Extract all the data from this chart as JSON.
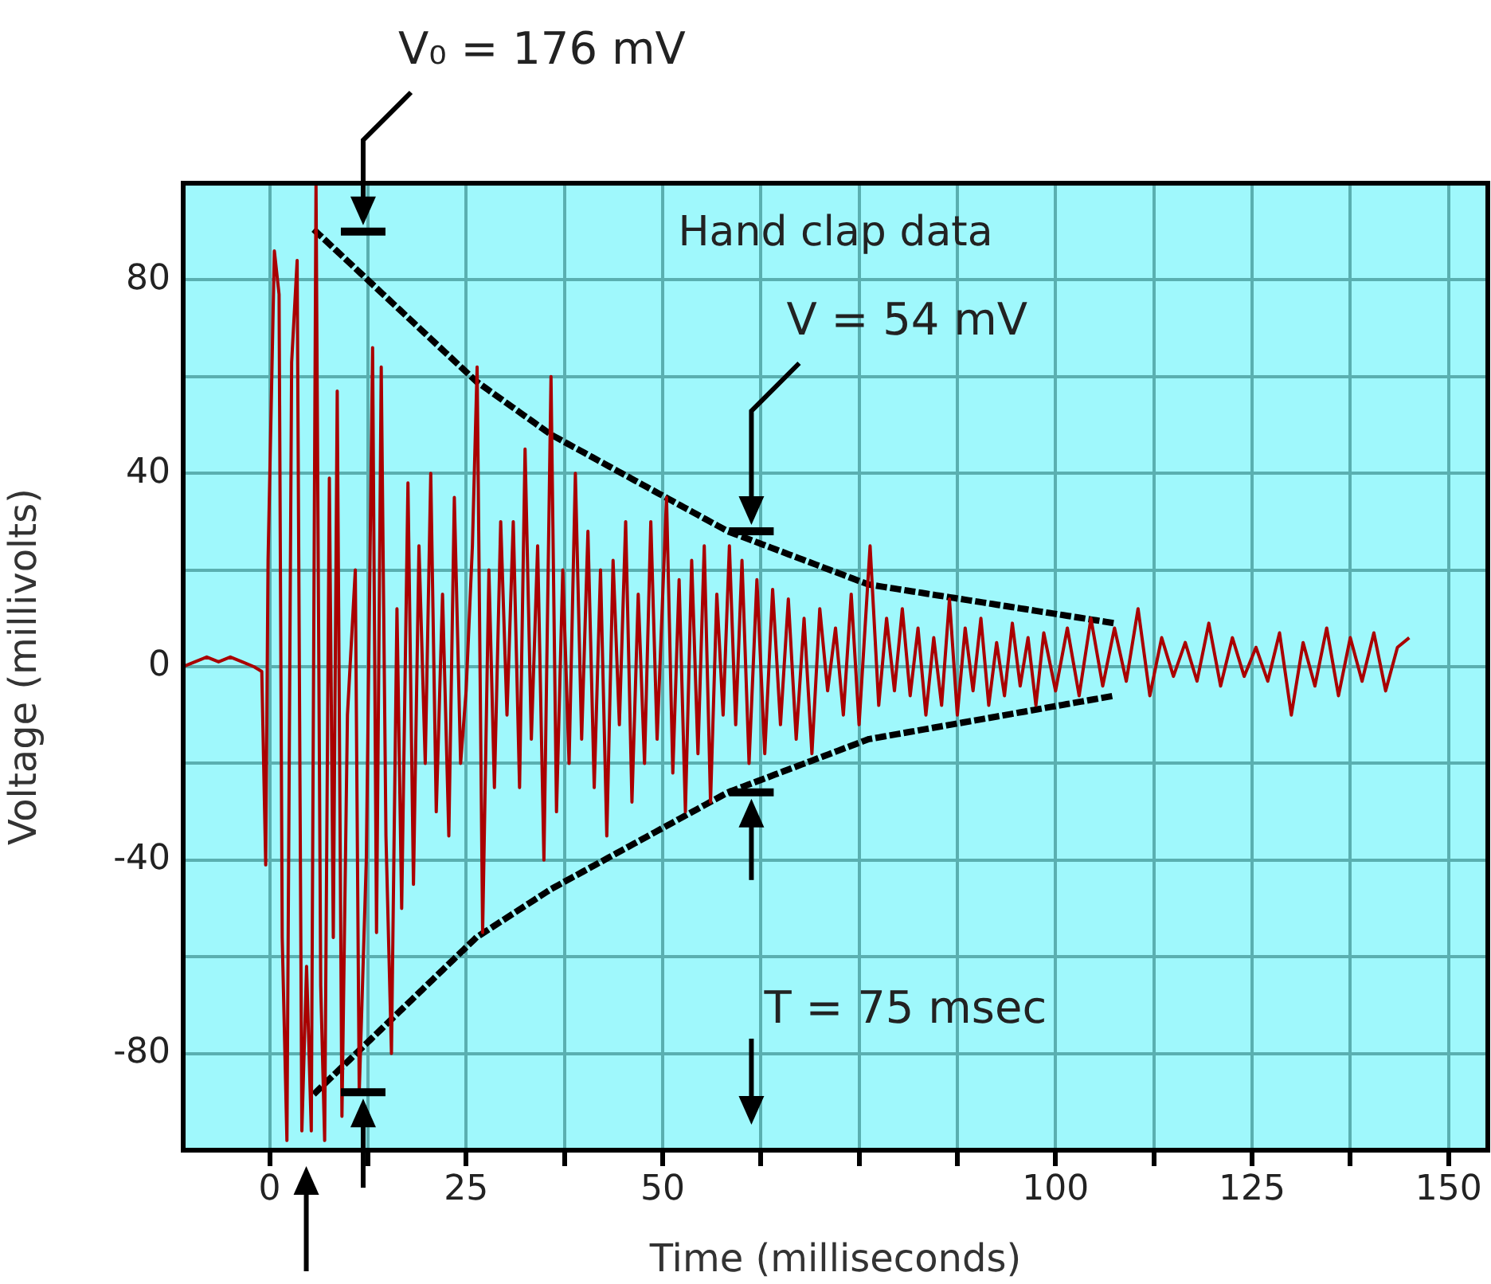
{
  "chart_data": {
    "type": "line",
    "title": "Hand clap data",
    "xlabel": "Time (milliseconds)",
    "ylabel": "Voltage (millivolts)",
    "xlim": [
      -11,
      155
    ],
    "ylim": [
      -100,
      100
    ],
    "xticks": [
      0,
      {
        "value": 12.5,
        "label": null
      },
      25,
      {
        "value": 37.5,
        "label": null
      },
      50,
      {
        "value": 62.5,
        "label": null
      },
      {
        "value": 75,
        "label": null
      },
      {
        "value": 87.5,
        "label": null
      },
      100,
      {
        "value": 112.5,
        "label": null
      },
      125,
      {
        "value": 137.5,
        "label": null
      },
      150
    ],
    "yticks": [
      -80,
      {
        "value": -60,
        "label": null
      },
      -40,
      {
        "value": -20,
        "label": null
      },
      0,
      {
        "value": 20,
        "label": null
      },
      40,
      {
        "value": 60,
        "label": null
      },
      80
    ],
    "grid": true,
    "legend": false,
    "marker": "none",
    "series": [
      {
        "color": "#aa0000",
        "line_style": "solid",
        "x": [
          -11,
          -9.5,
          -8,
          -6.5,
          -5,
          -3.5,
          -2,
          -1,
          -0.5,
          -0.2,
          0.6,
          1.2,
          1.6,
          2.2,
          2.8,
          3.5,
          4.1,
          4.7,
          5.3,
          5.9,
          6.5,
          7.0,
          7.6,
          8.1,
          8.6,
          9.2,
          9.9,
          10.9,
          11.4,
          12.3,
          13.1,
          13.6,
          14.2,
          14.8,
          15.5,
          16.2,
          16.8,
          17.6,
          18.3,
          19.0,
          19.8,
          20.5,
          21.2,
          22.0,
          22.8,
          23.5,
          24.3,
          25.0,
          25.8,
          26.4,
          27.1,
          27.9,
          28.6,
          29.4,
          30.2,
          31.0,
          31.8,
          32.5,
          33.3,
          34.1,
          34.9,
          35.8,
          36.5,
          37.3,
          38.1,
          38.9,
          39.7,
          40.5,
          41.3,
          42.1,
          42.9,
          43.7,
          44.5,
          45.3,
          46.1,
          46.9,
          47.7,
          48.5,
          49.3,
          50.5,
          51.3,
          52.1,
          52.9,
          53.7,
          54.5,
          55.3,
          56.1,
          56.9,
          57.7,
          58.5,
          59.3,
          60.1,
          61,
          62,
          63,
          64,
          65,
          66,
          67,
          68,
          69,
          70,
          71,
          72,
          73,
          74,
          75,
          76.4,
          77.5,
          78.5,
          79.5,
          80.5,
          81.5,
          82.5,
          83.5,
          84.5,
          85.5,
          86.5,
          87.5,
          88.5,
          89.5,
          90.5,
          91.5,
          92.5,
          93.5,
          94.5,
          95.5,
          96.5,
          97.5,
          98.5,
          100,
          101.5,
          103,
          104.5,
          106,
          107.5,
          109,
          110.5,
          112,
          113.5,
          115,
          116.5,
          118,
          119.5,
          121,
          122.5,
          124,
          125.5,
          127,
          128.5,
          130,
          131.5,
          133,
          134.5,
          136,
          137.5,
          139,
          140.5,
          142,
          143.5,
          145
        ],
        "values": [
          0,
          1,
          2,
          1,
          2,
          1,
          0,
          -1,
          -41,
          22,
          86,
          77,
          -56,
          -98,
          63,
          84,
          -96,
          -62,
          -96,
          100,
          -66,
          -98,
          39,
          -56,
          57,
          -93,
          -10,
          20,
          -88,
          -40,
          66,
          -55,
          62,
          -35,
          -80,
          12,
          -50,
          38,
          -45,
          25,
          -20,
          40,
          -30,
          15,
          -35,
          35,
          -20,
          -5,
          25,
          62,
          -55,
          20,
          -25,
          30,
          -10,
          30,
          -25,
          45,
          -15,
          25,
          -40,
          60,
          -30,
          20,
          -20,
          40,
          -15,
          28,
          -25,
          20,
          -35,
          22,
          -12,
          30,
          -28,
          15,
          -20,
          30,
          -15,
          35,
          -22,
          18,
          -30,
          22,
          -18,
          25,
          -28,
          15,
          -10,
          25,
          -12,
          22,
          -20,
          18,
          -18,
          16,
          -12,
          14,
          -15,
          10,
          -18,
          12,
          -5,
          8,
          -10,
          15,
          -12,
          25,
          -8,
          10,
          -5,
          12,
          -6,
          8,
          -10,
          6,
          -8,
          14,
          -10,
          8,
          -5,
          10,
          -8,
          5,
          -6,
          9,
          -4,
          6,
          -8,
          7,
          -5,
          8,
          -6,
          10,
          -4,
          8,
          -3,
          12,
          -6,
          6,
          -2,
          5,
          -3,
          9,
          -4,
          6,
          -2,
          4,
          -3,
          7,
          -10,
          5,
          -4,
          8,
          -6,
          6,
          -3,
          7,
          -5,
          4,
          6
        ]
      },
      {
        "color": "#000000",
        "line_style": "dotted",
        "x": [
          5.9,
          26.3,
          35.8,
          58.3,
          76.2,
          107.5
        ],
        "values": [
          90,
          59,
          48,
          28,
          17,
          9
        ]
      },
      {
        "color": "#000000",
        "line_style": "dotted",
        "x": [
          5.9,
          26.3,
          35.8,
          58.3,
          76.2,
          107.5
        ],
        "values": [
          -88,
          -56,
          -46,
          -26,
          -15,
          -6
        ]
      }
    ],
    "annotations": [
      "V₀ = 176 mV",
      "V = 54 mV",
      "T = 75 msec"
    ]
  }
}
